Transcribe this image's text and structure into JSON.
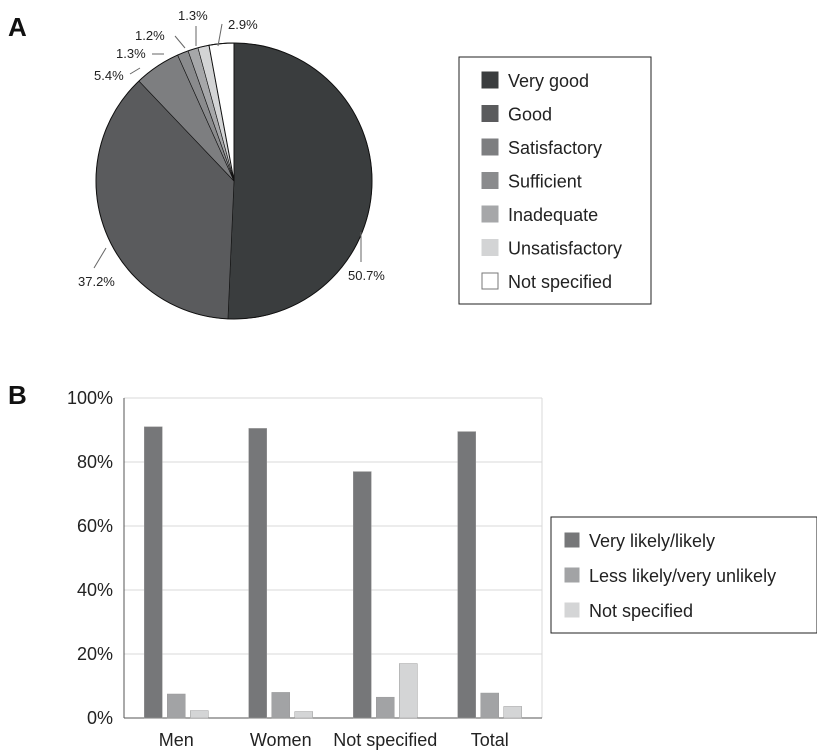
{
  "panels": {
    "a_label": "A",
    "b_label": "B"
  },
  "chart_data": [
    {
      "type": "pie",
      "title": "",
      "slices": [
        {
          "label": "Very good",
          "value": 50.7,
          "label_text": "50.7%",
          "color": "#3a3d3e"
        },
        {
          "label": "Good",
          "value": 37.2,
          "label_text": "37.2%",
          "color": "#5a5b5d"
        },
        {
          "label": "Satisfactory",
          "value": 5.4,
          "label_text": "5.4%",
          "color": "#7d7e80"
        },
        {
          "label": "Sufficient",
          "value": 1.3,
          "label_text": "1.3%",
          "color": "#8a8b8d"
        },
        {
          "label": "Inadequate",
          "value": 1.2,
          "label_text": "1.2%",
          "color": "#a6a7a9"
        },
        {
          "label": "Unsatisfactory",
          "value": 1.3,
          "label_text": "1.3%",
          "color": "#d3d4d5"
        },
        {
          "label": "Not specified",
          "value": 2.9,
          "label_text": "2.9%",
          "color": "#ffffff"
        }
      ],
      "legend_placement": "right"
    },
    {
      "type": "bar",
      "title": "",
      "xlabel": "",
      "ylabel": "",
      "categories": [
        "Men",
        "Women",
        "Not specified",
        "Total"
      ],
      "series": [
        {
          "name": "Very likely/likely",
          "values": [
            91,
            90.5,
            77,
            89.5
          ],
          "color": "#767779"
        },
        {
          "name": "Less likely/very unlikely",
          "values": [
            7.5,
            8,
            6.5,
            7.8
          ],
          "color": "#a2a3a5"
        },
        {
          "name": "Not specified",
          "values": [
            2.3,
            2,
            17,
            3.6
          ],
          "color": "#d4d5d6"
        }
      ],
      "ylim": [
        0,
        100
      ],
      "yticks": [
        "0%",
        "20%",
        "40%",
        "60%",
        "80%",
        "100%"
      ],
      "grid": true,
      "legend_placement": "right"
    }
  ]
}
